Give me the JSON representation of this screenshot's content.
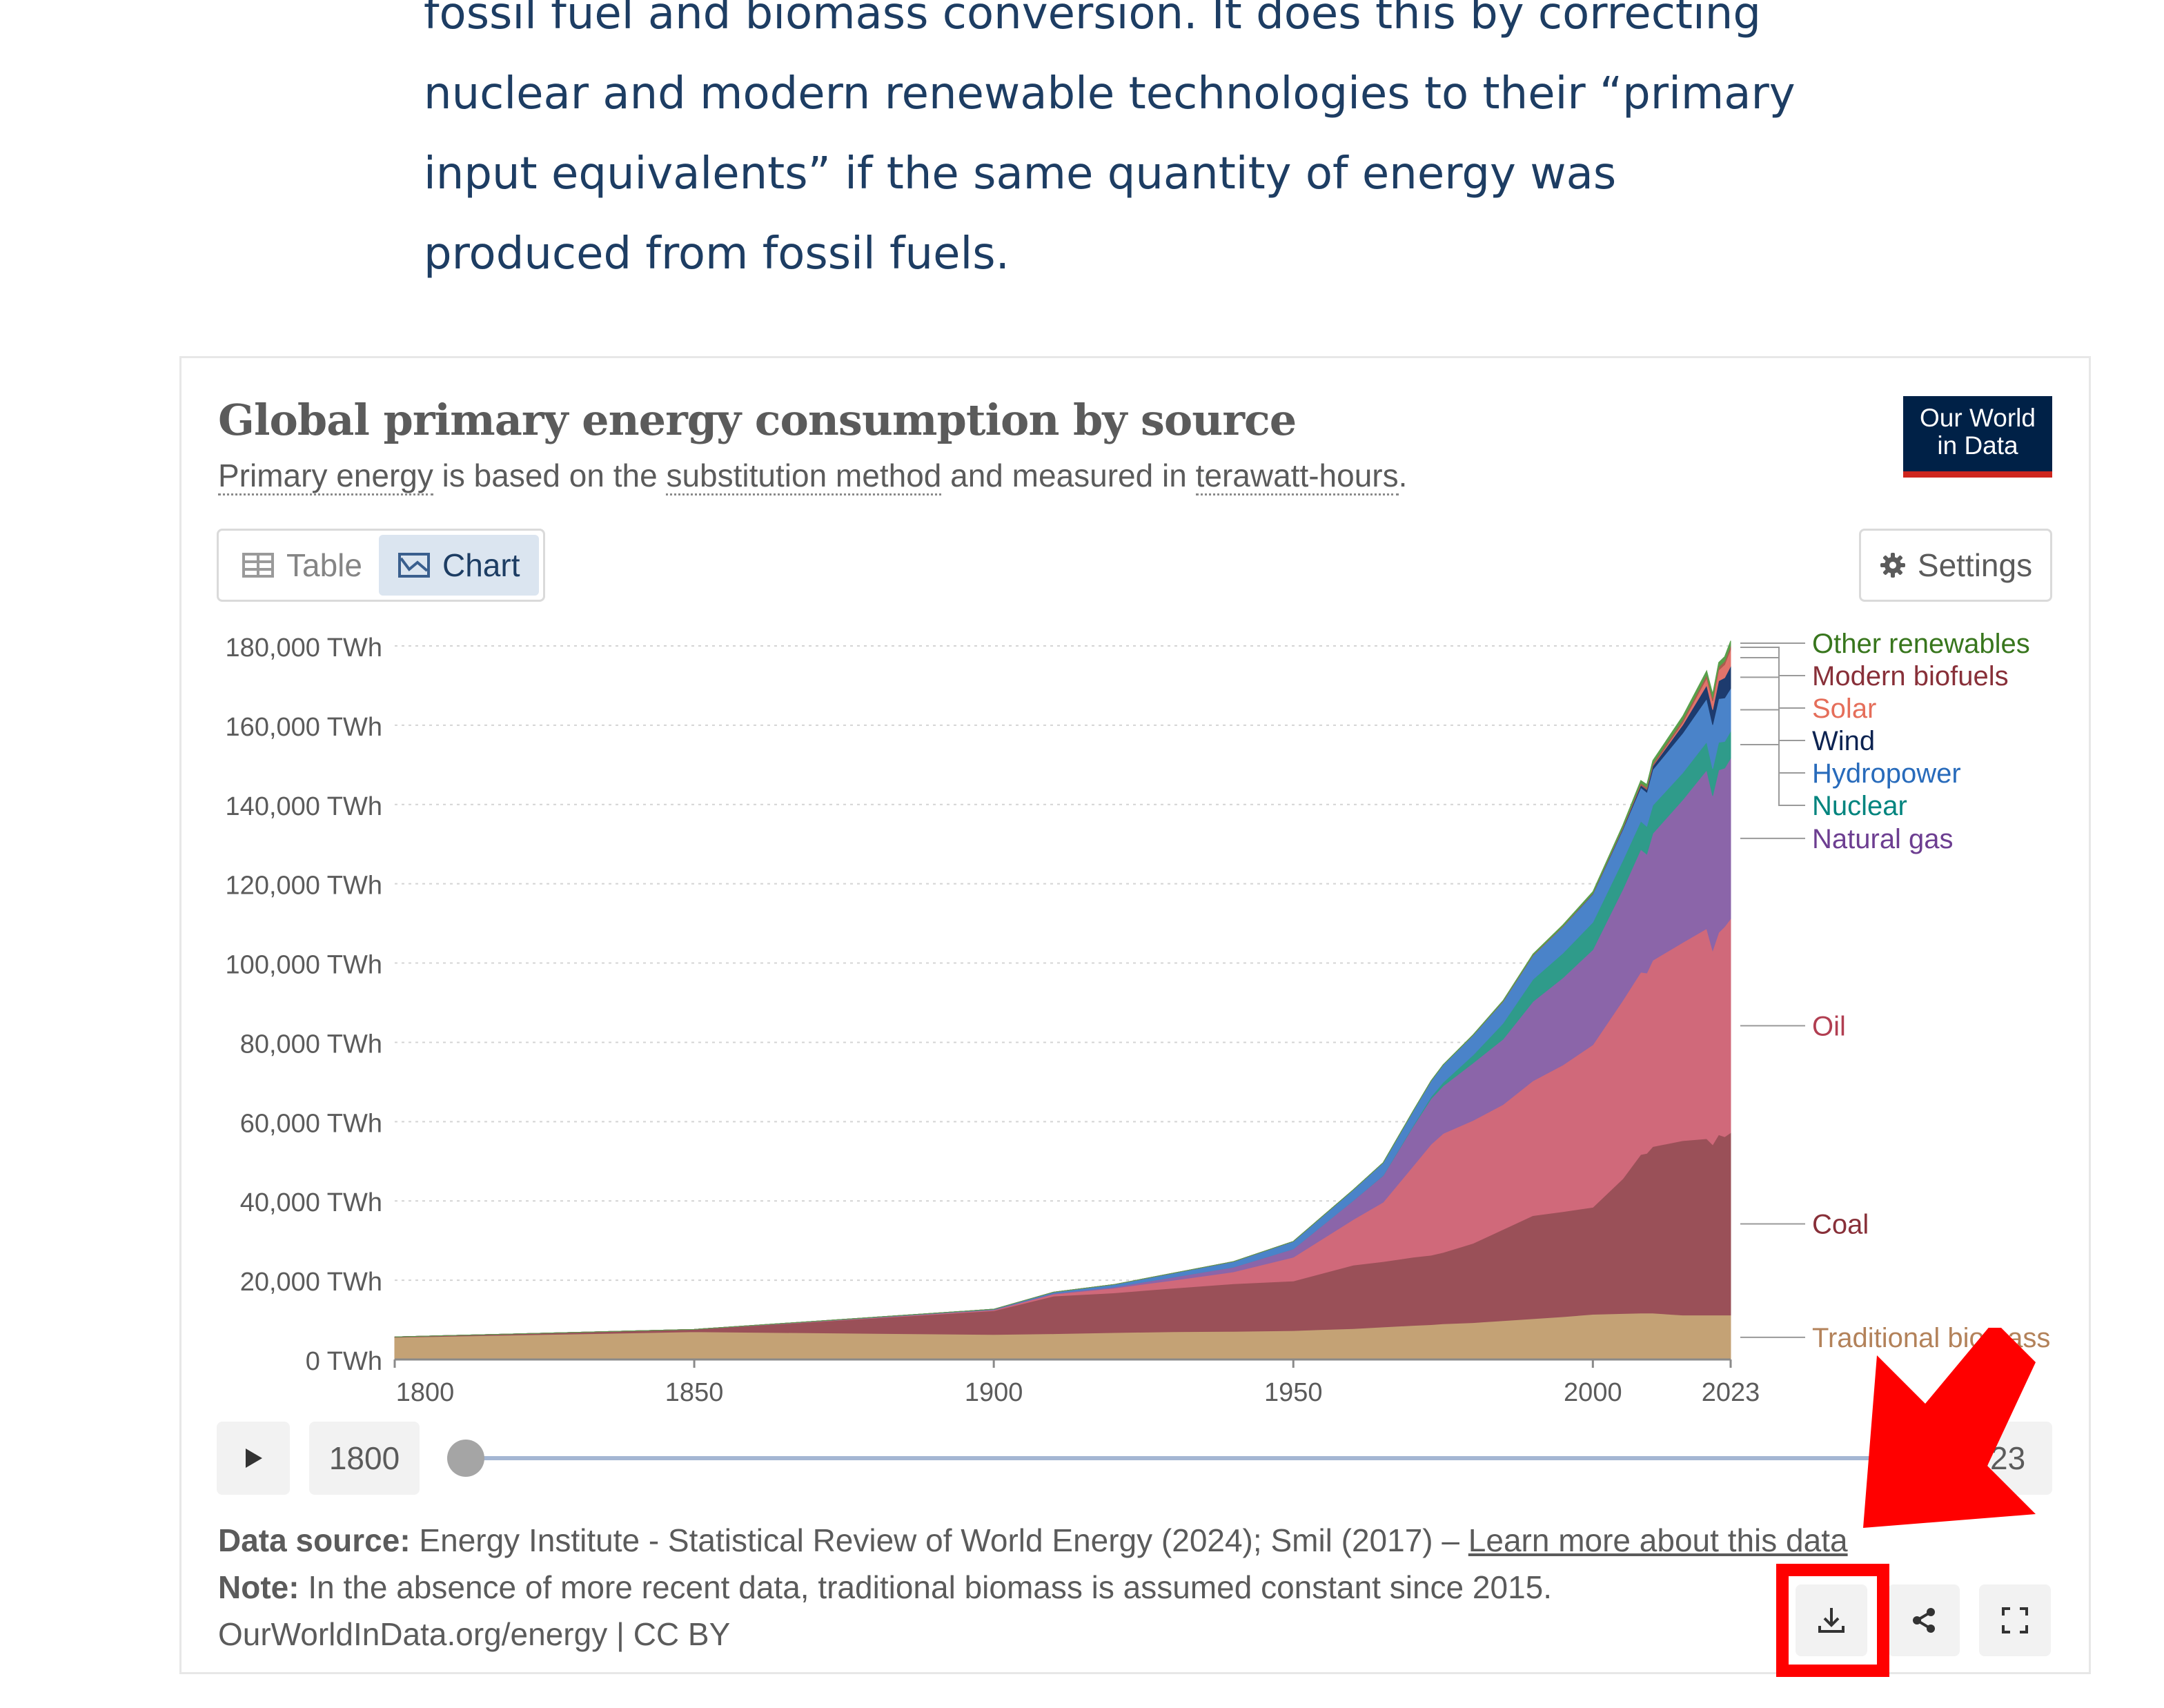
{
  "article": {
    "lines": [
      "fossil fuel and biomass conversion. It does this by correcting",
      "nuclear and modern renewable technologies to their “primary",
      "input equivalents” if the same quantity of energy was",
      "produced from fossil fuels."
    ]
  },
  "header": {
    "title": "Global primary energy consumption by source",
    "subtitle_parts": [
      "Primary energy",
      " is based on the ",
      "substitution method",
      " and measured in ",
      "terawatt-hours",
      "."
    ],
    "logo_line1": "Our World",
    "logo_line2": "in Data"
  },
  "tabs": {
    "table_label": "Table",
    "chart_label": "Chart",
    "active": "Chart"
  },
  "settings_label": "Settings",
  "timeline": {
    "start_label": "1800",
    "end_label": "2023"
  },
  "footer": {
    "source_label": "Data source:",
    "source_text": " Energy Institute - Statistical Review of World Energy (2024); Smil (2017) – ",
    "source_link": "Learn more about this data",
    "note_label": "Note:",
    "note_text": " In the absence of more recent data, traditional biomass is assumed constant since 2015.",
    "credit": "OurWorldInData.org/energy | CC BY"
  },
  "icons": [
    "table-icon",
    "chart-icon",
    "gear-icon",
    "play-icon",
    "download-icon",
    "share-icon",
    "fullscreen-icon",
    "red-arrow"
  ],
  "annotation_color": "#ff0000",
  "chart_data": {
    "type": "area",
    "stacked": true,
    "title": "Global primary energy consumption by source",
    "ylabel_unit": "TWh",
    "ylim": [
      0,
      180000
    ],
    "xlim": [
      1800,
      2023
    ],
    "y_ticks": [
      0,
      20000,
      40000,
      60000,
      80000,
      100000,
      120000,
      140000,
      160000,
      180000
    ],
    "y_tick_labels": [
      "0 TWh",
      "20,000 TWh",
      "40,000 TWh",
      "60,000 TWh",
      "80,000 TWh",
      "100,000 TWh",
      "120,000 TWh",
      "140,000 TWh",
      "160,000 TWh",
      "180,000 TWh"
    ],
    "x_ticks": [
      1800,
      1850,
      1900,
      1950,
      2000,
      2023
    ],
    "x_tick_labels": [
      "1800",
      "1850",
      "1900",
      "1950",
      "2000",
      "2023"
    ],
    "grid": "horizontal dotted",
    "legend": "right, line labels",
    "x": [
      1800,
      1850,
      1900,
      1910,
      1920,
      1930,
      1940,
      1950,
      1960,
      1965,
      1970,
      1973,
      1975,
      1980,
      1985,
      1990,
      1995,
      2000,
      2005,
      2008,
      2009,
      2010,
      2015,
      2019,
      2020,
      2021,
      2022,
      2023
    ],
    "series": [
      {
        "name": "Traditional biomass",
        "color": "#c4a275",
        "label_color": "#b3825a",
        "values": [
          5600,
          7000,
          6300,
          6500,
          6800,
          7000,
          7100,
          7300,
          7800,
          8200,
          8600,
          8800,
          9000,
          9300,
          9800,
          10300,
          10800,
          11400,
          11600,
          11700,
          11700,
          11700,
          11200,
          11200,
          11200,
          11200,
          11200,
          11200
        ]
      },
      {
        "name": "Coal",
        "color": "#9a5058",
        "label_color": "#883039",
        "values": [
          100,
          600,
          6000,
          9500,
          10000,
          11000,
          12000,
          12500,
          16000,
          16500,
          17200,
          17500,
          18000,
          20000,
          23000,
          26000,
          26500,
          27000,
          34000,
          40000,
          40300,
          42000,
          44000,
          44500,
          43000,
          45500,
          45000,
          46000
        ]
      },
      {
        "name": "Oil",
        "color": "#d0697a",
        "label_color": "#b13e51",
        "values": [
          0,
          0,
          200,
          500,
          1200,
          2000,
          3000,
          6000,
          11500,
          15000,
          23000,
          28000,
          30000,
          31000,
          31500,
          34000,
          37000,
          41000,
          45000,
          46000,
          45500,
          47000,
          50000,
          53000,
          49000,
          51000,
          53000,
          54000
        ]
      },
      {
        "name": "Natural gas",
        "color": "#8b65a9",
        "label_color": "#6d3e91",
        "values": [
          0,
          0,
          100,
          200,
          300,
          800,
          1200,
          2100,
          4800,
          6700,
          10000,
          11500,
          12000,
          14500,
          16500,
          20000,
          22000,
          24000,
          28000,
          31000,
          30000,
          32000,
          36000,
          40000,
          39000,
          41000,
          40000,
          40500
        ]
      },
      {
        "name": "Nuclear",
        "color": "#2f9b8a",
        "label_color": "#00847e",
        "values": [
          0,
          0,
          0,
          0,
          0,
          0,
          0,
          0,
          10,
          60,
          200,
          500,
          900,
          2000,
          4000,
          5600,
          6200,
          6900,
          7300,
          7100,
          7000,
          7100,
          6800,
          7100,
          6800,
          7000,
          6700,
          6800
        ]
      },
      {
        "name": "Hydropower",
        "color": "#4a83c9",
        "label_color": "#286bbb",
        "values": [
          0,
          0,
          100,
          300,
          600,
          1000,
          1400,
          1900,
          2700,
          3200,
          3700,
          4000,
          4400,
          5000,
          5500,
          6000,
          6700,
          7100,
          7800,
          8500,
          8600,
          9000,
          10000,
          10900,
          11100,
          11000,
          11000,
          10800
        ]
      },
      {
        "name": "Wind",
        "color": "#1d3b6e",
        "label_color": "#0c2351",
        "values": [
          0,
          0,
          0,
          0,
          0,
          0,
          0,
          0,
          0,
          0,
          0,
          0,
          0,
          0,
          0,
          10,
          20,
          80,
          260,
          600,
          700,
          900,
          2100,
          3400,
          3800,
          4500,
          5100,
          5600
        ]
      },
      {
        "name": "Solar",
        "color": "#e1736b",
        "label_color": "#e56e5a",
        "values": [
          0,
          0,
          0,
          0,
          0,
          0,
          0,
          0,
          0,
          0,
          0,
          0,
          0,
          0,
          0,
          0,
          0,
          5,
          10,
          30,
          50,
          80,
          600,
          1800,
          2200,
          2700,
          3300,
          4300
        ]
      },
      {
        "name": "Modern biofuels",
        "color": "#a85d4d",
        "label_color": "#883039",
        "values": [
          0,
          0,
          0,
          0,
          0,
          0,
          0,
          0,
          0,
          0,
          0,
          0,
          0,
          30,
          100,
          120,
          130,
          140,
          280,
          500,
          530,
          550,
          650,
          800,
          780,
          820,
          860,
          900
        ]
      },
      {
        "name": "Other renewables",
        "color": "#58a04b",
        "label_color": "#38761d",
        "values": [
          0,
          0,
          0,
          0,
          0,
          0,
          0,
          0,
          20,
          30,
          40,
          50,
          60,
          100,
          150,
          250,
          300,
          400,
          550,
          650,
          680,
          760,
          950,
          1050,
          1060,
          1100,
          1150,
          1200
        ]
      }
    ]
  }
}
